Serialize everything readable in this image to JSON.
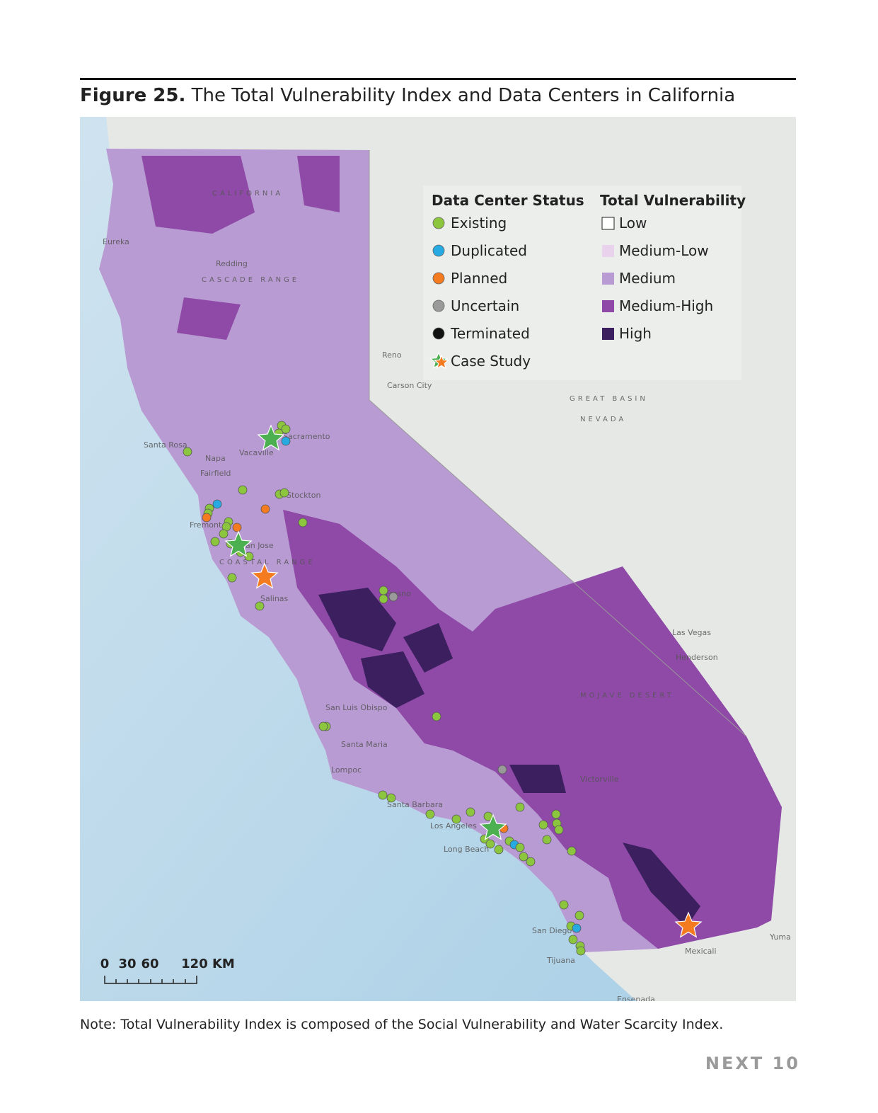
{
  "figure": {
    "label": "Figure 25.",
    "title": "The Total Vulnerability Index and Data Centers in California"
  },
  "legend": {
    "status": {
      "title": "Data Center Status",
      "items": [
        {
          "label": "Existing",
          "color": "#8cc63f"
        },
        {
          "label": "Duplicated",
          "color": "#27aae1"
        },
        {
          "label": "Planned",
          "color": "#f47b20"
        },
        {
          "label": "Uncertain",
          "color": "#9a9a9a"
        },
        {
          "label": "Terminated",
          "color": "#111111"
        },
        {
          "label": "Case Study",
          "color": "#4caf50"
        }
      ]
    },
    "vulnerability": {
      "title": "Total Vulnerability",
      "items": [
        {
          "label": "Low",
          "color": "#ffffff"
        },
        {
          "label": "Medium-Low",
          "color": "#e9d3ec"
        },
        {
          "label": "Medium",
          "color": "#b99bd3"
        },
        {
          "label": "Medium-High",
          "color": "#8e4aa6"
        },
        {
          "label": "High",
          "color": "#3b1f5e"
        }
      ]
    }
  },
  "scale_bar": {
    "labels": [
      "0",
      "30",
      "60",
      "120 KM"
    ]
  },
  "map_labels": [
    "Eureka",
    "Redding",
    "CASCADE RANGE",
    "CALIFORNIA",
    "Reno",
    "Carson City",
    "Santa Rosa",
    "Napa",
    "Fairfield",
    "Vacaville",
    "Sacramento",
    "Stockton",
    "Fremont",
    "San Jose",
    "COASTAL RANGE",
    "Salinas",
    "Fresno",
    "San Luis Obispo",
    "Santa Maria",
    "Lompoc",
    "Santa Barbara",
    "Los Angeles",
    "Long Beach",
    "Victorville",
    "San Diego",
    "Tijuana",
    "Mexicali",
    "Las Vegas",
    "Henderson",
    "NEVADA",
    "GREAT BASIN",
    "MOJAVE DESERT",
    "Yuma",
    "Ensenada"
  ],
  "note": "Note: Total Vulnerability Index is composed of the Social Vulnerability and Water Scarcity Index.",
  "footer": {
    "brand": "NEXT",
    "page": "10"
  }
}
